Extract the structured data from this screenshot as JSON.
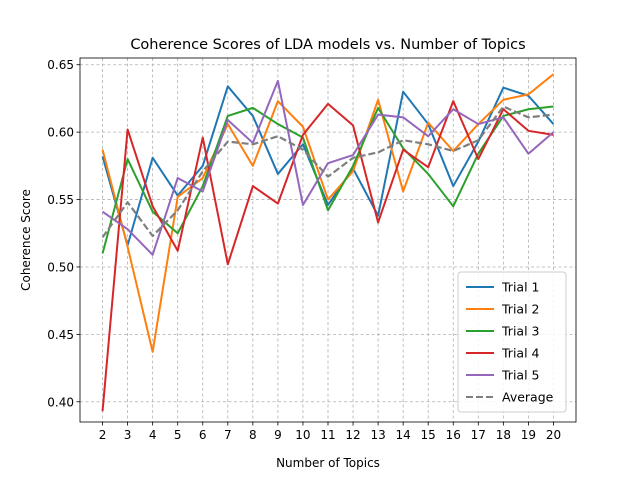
{
  "chart_data": {
    "type": "line",
    "title": "Coherence Scores of LDA models vs. Number of Topics",
    "xlabel": "Number of Topics",
    "ylabel": "Coherence Score",
    "x": [
      2,
      3,
      4,
      5,
      6,
      7,
      8,
      9,
      10,
      11,
      12,
      13,
      14,
      15,
      16,
      17,
      18,
      19,
      20
    ],
    "xlim": [
      1.1,
      20.9
    ],
    "ylim": [
      0.385,
      0.655
    ],
    "yticks": [
      "0.40",
      "0.45",
      "0.50",
      "0.55",
      "0.60",
      "0.65"
    ],
    "ytick_values": [
      0.4,
      0.45,
      0.5,
      0.55,
      0.6,
      0.65
    ],
    "grid": true,
    "legend_position": "lower-right",
    "series": [
      {
        "name": "Trial 1",
        "color": "#1f77b4",
        "dashed": false,
        "values": [
          0.582,
          0.516,
          0.581,
          0.553,
          0.575,
          0.634,
          0.612,
          0.569,
          0.591,
          0.546,
          0.573,
          0.538,
          0.63,
          0.606,
          0.56,
          0.593,
          0.633,
          0.627,
          0.606
        ]
      },
      {
        "name": "Trial 2",
        "color": "#ff7f0e",
        "dashed": false,
        "values": [
          0.587,
          0.515,
          0.437,
          0.552,
          0.566,
          0.606,
          0.575,
          0.623,
          0.604,
          0.55,
          0.571,
          0.624,
          0.556,
          0.607,
          0.586,
          0.606,
          0.624,
          0.628,
          0.643
        ]
      },
      {
        "name": "Trial 3",
        "color": "#2ca02c",
        "dashed": false,
        "values": [
          0.51,
          0.58,
          0.541,
          0.525,
          0.56,
          0.612,
          0.618,
          0.606,
          0.596,
          0.542,
          0.575,
          0.618,
          0.588,
          0.569,
          0.545,
          0.584,
          0.612,
          0.617,
          0.619
        ]
      },
      {
        "name": "Trial 4",
        "color": "#d62728",
        "dashed": false,
        "values": [
          0.393,
          0.602,
          0.545,
          0.512,
          0.596,
          0.502,
          0.56,
          0.547,
          0.598,
          0.621,
          0.605,
          0.533,
          0.587,
          0.574,
          0.623,
          0.58,
          0.617,
          0.601,
          0.598
        ]
      },
      {
        "name": "Trial 5",
        "color": "#9467bd",
        "dashed": false,
        "values": [
          0.541,
          0.528,
          0.509,
          0.566,
          0.556,
          0.609,
          0.592,
          0.638,
          0.546,
          0.577,
          0.583,
          0.613,
          0.611,
          0.597,
          0.617,
          0.606,
          0.611,
          0.584,
          0.6
        ]
      },
      {
        "name": "Average",
        "color": "#7f7f7f",
        "dashed": true,
        "values": [
          0.522,
          0.548,
          0.523,
          0.542,
          0.571,
          0.593,
          0.591,
          0.597,
          0.587,
          0.567,
          0.581,
          0.585,
          0.594,
          0.591,
          0.586,
          0.594,
          0.619,
          0.611,
          0.613
        ]
      }
    ]
  }
}
